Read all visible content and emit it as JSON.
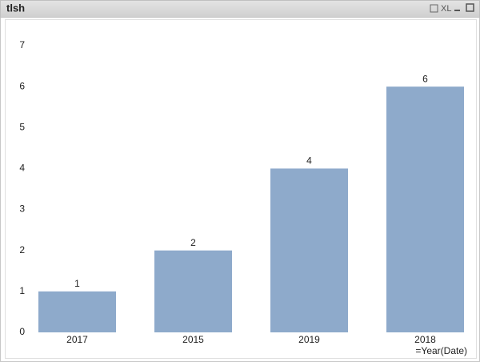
{
  "toolbar_label": "XL",
  "chart_data": {
    "type": "bar",
    "title": "tlsh",
    "x_label": "=Year(Date)",
    "categories": [
      "2017",
      "2015",
      "2019",
      "2018"
    ],
    "values": [
      1,
      2,
      4,
      6
    ],
    "color": "#8eaacb",
    "ylim": [
      0,
      7
    ],
    "yticks": [
      0,
      1,
      2,
      3,
      4,
      5,
      6,
      7
    ],
    "grid": false
  }
}
